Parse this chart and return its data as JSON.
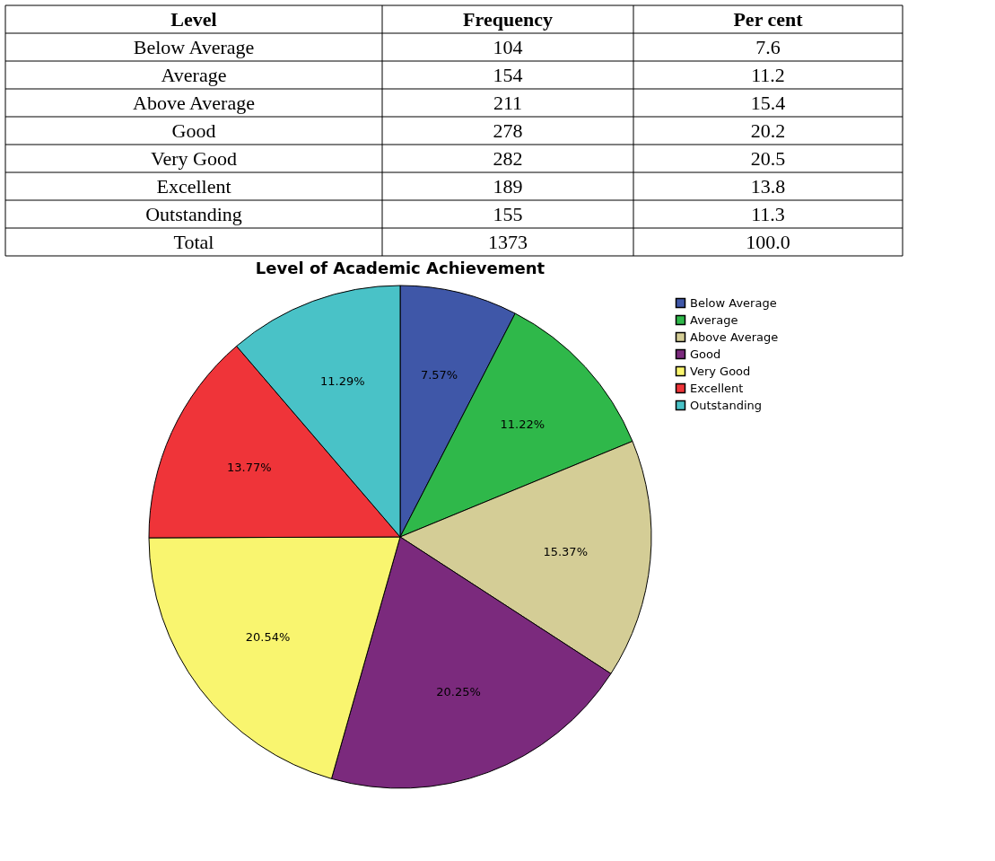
{
  "chart_data": [
    {
      "type": "other",
      "annotations": [
        "Level",
        "Frequency",
        "Per cent",
        "Below Average",
        "104",
        "7.6",
        "Average",
        "154",
        "11.2",
        "Above Average",
        "211",
        "15.4",
        "Good",
        "278",
        "20.2",
        "Very Good",
        "282",
        "20.5",
        "Excellent",
        "189",
        "13.8",
        "Outstanding",
        "155",
        "11.3",
        "Total",
        "1373",
        "100.0"
      ]
    },
    {
      "type": "pie",
      "title": "Level of Academic Achievement",
      "categories": [
        "Below Average",
        "Average",
        "Above Average",
        "Good",
        "Very Good",
        "Excellent",
        "Outstanding"
      ],
      "values": [
        7.57,
        11.22,
        15.37,
        20.25,
        20.54,
        13.77,
        11.29
      ],
      "colors": [
        "#3f57a8",
        "#2fb84a",
        "#d4cd96",
        "#7b2a7d",
        "#f9f56f",
        "#ef3439",
        "#49c2c7"
      ],
      "value_labels": [
        "7.57%",
        "11.22%",
        "15.37%",
        "20.25%",
        "20.54%",
        "13.77%",
        "11.29%"
      ],
      "legend": "top right"
    }
  ]
}
